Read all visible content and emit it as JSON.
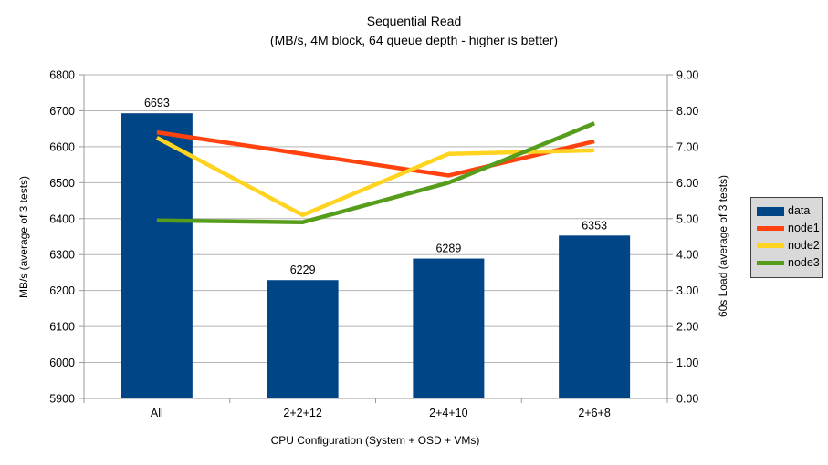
{
  "chart_data": {
    "type": "combo-bar-line",
    "title": "Sequential Read",
    "subtitle": "(MB/s, 4M block, 64 queue depth - higher is better)",
    "xlabel": "CPU Configuration (System + OSD + VMs)",
    "ylabel_left": "MB/s (average of 3 tests)",
    "ylabel_right": "60s Load (average of 3 tests)",
    "categories": [
      "All",
      "2+2+12",
      "2+4+10",
      "2+6+8"
    ],
    "series": [
      {
        "name": "data",
        "type": "bar",
        "axis": "left",
        "color": "#004586",
        "values": [
          6693,
          6229,
          6289,
          6353
        ]
      },
      {
        "name": "node1",
        "type": "line",
        "axis": "right",
        "color": "#FF420E",
        "values": [
          7.4,
          6.8,
          6.2,
          7.15
        ]
      },
      {
        "name": "node2",
        "type": "line",
        "axis": "right",
        "color": "#FFD320",
        "values": [
          7.25,
          5.1,
          6.8,
          6.9
        ]
      },
      {
        "name": "node3",
        "type": "line",
        "axis": "right",
        "color": "#579D1C",
        "values": [
          4.95,
          4.9,
          6.0,
          7.65
        ]
      }
    ],
    "ylim_left": [
      5900,
      6800
    ],
    "ytick_step_left": 100,
    "yticks_left": [
      "5900",
      "6000",
      "6100",
      "6200",
      "6300",
      "6400",
      "6500",
      "6600",
      "6700",
      "6800"
    ],
    "ylim_right": [
      0,
      9
    ],
    "ytick_step_right": 1,
    "yticks_right": [
      "0.00",
      "1.00",
      "2.00",
      "3.00",
      "4.00",
      "5.00",
      "6.00",
      "7.00",
      "8.00",
      "9.00"
    ],
    "bar_labels": [
      "6693",
      "6229",
      "6289",
      "6353"
    ],
    "grid": "horizontal",
    "legend_position": "right",
    "legend": [
      "data",
      "node1",
      "node2",
      "node3"
    ],
    "colors": {
      "bar": "#004586",
      "node1": "#FF420E",
      "node2": "#FFD320",
      "node3": "#579D1C",
      "gridline": "#b3b3b3",
      "axis": "#999999",
      "legend_bg": "#d9d9d9"
    }
  }
}
